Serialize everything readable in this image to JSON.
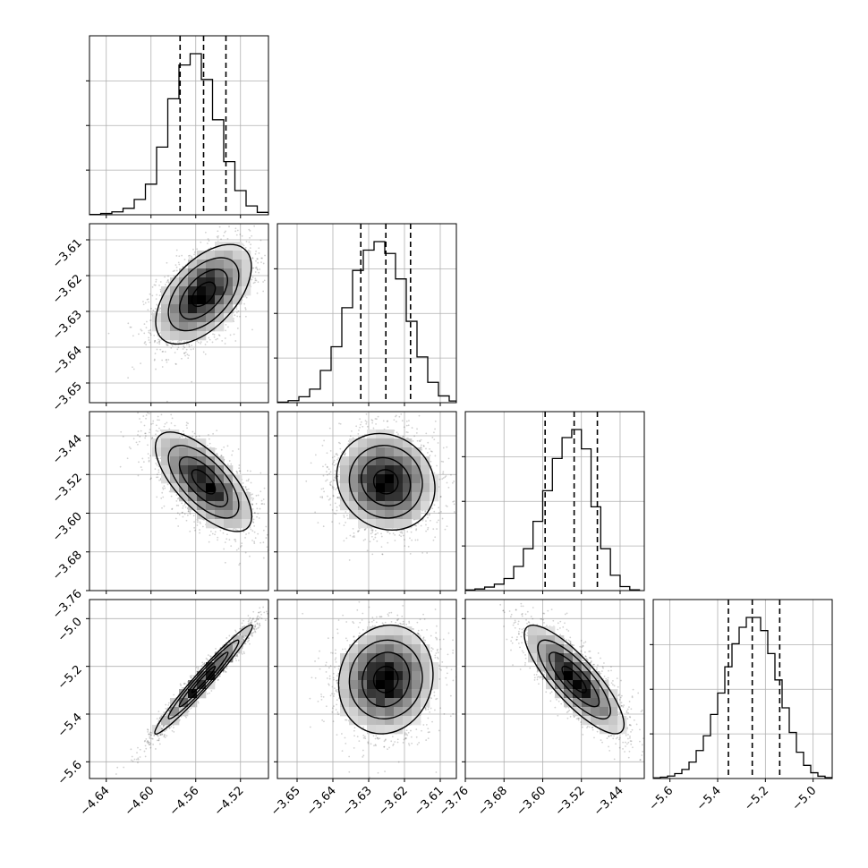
{
  "chart_data": {
    "type": "corner",
    "title": "",
    "grid": true,
    "parameters": [
      {
        "range": [
          -4.655,
          -4.495
        ],
        "tick_values": [
          -4.64,
          -4.6,
          -4.56,
          -4.52
        ],
        "tick_labels": [
          "−4.64",
          "−4.60",
          "−4.56",
          "−4.52"
        ],
        "quantiles": [
          -4.574,
          -4.553,
          -4.533
        ],
        "hist_bins": [
          -4.655,
          -4.645,
          -4.635,
          -4.625,
          -4.615,
          -4.605,
          -4.595,
          -4.585,
          -4.575,
          -4.565,
          -4.555,
          -4.545,
          -4.535,
          -4.525,
          -4.515,
          -4.505,
          -4.495
        ],
        "hist_counts": [
          2,
          8,
          18,
          40,
          95,
          190,
          420,
          720,
          930,
          1000,
          840,
          590,
          330,
          150,
          55,
          15
        ],
        "center": -4.553,
        "std": 0.021
      },
      {
        "range": [
          -3.6555,
          -3.6055
        ],
        "tick_values": [
          -3.65,
          -3.64,
          -3.63,
          -3.62,
          -3.61
        ],
        "tick_labels": [
          "−3.65",
          "−3.64",
          "−3.63",
          "−3.62",
          "−3.61"
        ],
        "quantiles": [
          -3.6322,
          -3.6252,
          -3.6183
        ],
        "hist_bins": [
          -3.6555,
          -3.6525,
          -3.6495,
          -3.6465,
          -3.6435,
          -3.6405,
          -3.6375,
          -3.6345,
          -3.6315,
          -3.6285,
          -3.6255,
          -3.6225,
          -3.6195,
          -3.6165,
          -3.6135,
          -3.6105,
          -3.6075,
          -3.6055
        ],
        "hist_counts": [
          3,
          12,
          35,
          80,
          190,
          330,
          560,
          780,
          900,
          950,
          880,
          730,
          480,
          270,
          120,
          40,
          10
        ],
        "center": -3.6252,
        "std": 0.0068
      },
      {
        "range": [
          -3.76,
          -3.39
        ],
        "tick_values": [
          -3.76,
          -3.68,
          -3.6,
          -3.52,
          -3.44
        ],
        "tick_labels": [
          "−3.76",
          "−3.68",
          "−3.60",
          "−3.52",
          "−3.44"
        ],
        "quantiles": [
          -3.595,
          -3.535,
          -3.487
        ],
        "hist_bins": [
          -3.76,
          -3.74,
          -3.72,
          -3.7,
          -3.68,
          -3.66,
          -3.64,
          -3.62,
          -3.6,
          -3.58,
          -3.56,
          -3.54,
          -3.52,
          -3.5,
          -3.48,
          -3.46,
          -3.44,
          -3.42,
          -3.4
        ],
        "hist_counts": [
          4,
          10,
          22,
          40,
          75,
          150,
          260,
          430,
          620,
          820,
          950,
          1000,
          880,
          520,
          260,
          95,
          25,
          5
        ],
        "center": -3.535,
        "std": 0.05
      },
      {
        "range": [
          -5.67,
          -4.92
        ],
        "tick_values": [
          -5.6,
          -5.4,
          -5.2,
          -5.0
        ],
        "tick_labels": [
          "−5.6",
          "−5.4",
          "−5.2",
          "−5.0"
        ],
        "quantiles": [
          -5.355,
          -5.255,
          -5.14
        ],
        "hist_bins": [
          -5.67,
          -5.64,
          -5.61,
          -5.58,
          -5.55,
          -5.52,
          -5.49,
          -5.46,
          -5.43,
          -5.4,
          -5.37,
          -5.34,
          -5.31,
          -5.28,
          -5.25,
          -5.22,
          -5.19,
          -5.16,
          -5.13,
          -5.1,
          -5.07,
          -5.04,
          -5.01,
          -4.98,
          -4.95,
          -4.92
        ],
        "hist_counts": [
          4,
          8,
          15,
          30,
          55,
          100,
          170,
          260,
          390,
          520,
          680,
          820,
          920,
          980,
          980,
          900,
          760,
          600,
          430,
          280,
          160,
          80,
          35,
          14,
          5
        ],
        "center": -5.255,
        "std": 0.11
      }
    ],
    "correlations": [
      [
        1.0,
        0.5,
        -0.65,
        0.97
      ],
      [
        0.5,
        1.0,
        -0.05,
        0.05
      ],
      [
        -0.65,
        -0.05,
        1.0,
        -0.8
      ],
      [
        0.97,
        0.05,
        -0.8,
        1.0
      ]
    ],
    "contour_levels_sigma": [
      0.5,
      1.0,
      1.5,
      2.0
    ],
    "colors": {
      "line": "#000000",
      "grid": "#b0b0b0",
      "scatter": "#000000",
      "hist2d_max": "#000000"
    }
  }
}
